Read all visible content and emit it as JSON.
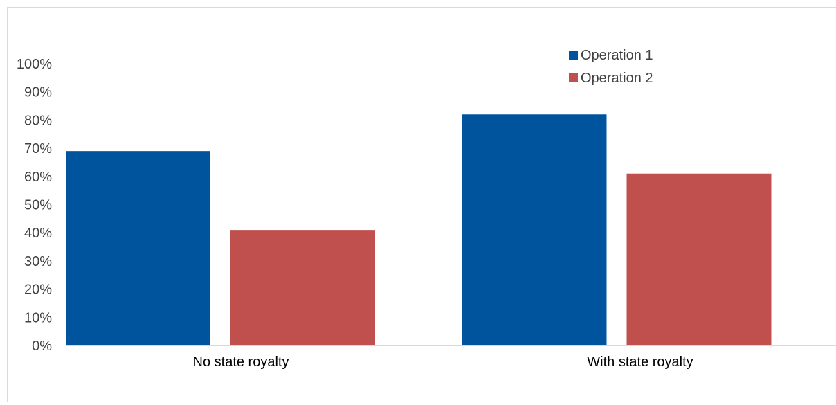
{
  "chart_data": {
    "type": "bar",
    "title": "",
    "xlabel": "",
    "ylabel": "",
    "categories": [
      "No state royalty",
      "With state royalty"
    ],
    "series": [
      {
        "name": "Operation 1",
        "values": [
          69,
          82
        ],
        "color": "#00549E"
      },
      {
        "name": "Operation 2",
        "values": [
          41,
          61
        ],
        "color": "#C0504D"
      }
    ],
    "ylim": [
      0,
      100
    ],
    "yticks": [
      0,
      10,
      20,
      30,
      40,
      50,
      60,
      70,
      80,
      90,
      100
    ],
    "ytick_labels": [
      "0%",
      "10%",
      "20%",
      "30%",
      "40%",
      "50%",
      "60%",
      "70%",
      "80%",
      "90%",
      "100%"
    ],
    "grid": false,
    "legend_position": "top-right"
  }
}
